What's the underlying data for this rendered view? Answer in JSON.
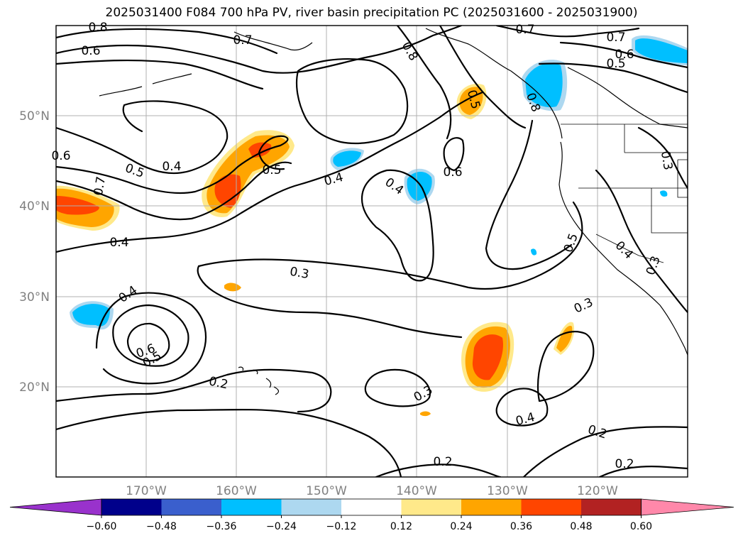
{
  "title": "2025031400 F084 700 hPa PV, river basin precipitation PC (2025031600 - 2025031900)",
  "map": {
    "extent": {
      "lon": [
        -180,
        -110
      ],
      "lat": [
        10,
        60
      ]
    },
    "grid": true,
    "lat_labels": [
      "50°N",
      "40°N",
      "30°N",
      "20°N"
    ],
    "lon_labels": [
      "170°W",
      "160°W",
      "150°W",
      "140°W",
      "130°W",
      "120°W"
    ],
    "contour_labels": [
      "0.8",
      "0.7",
      "0.6",
      "0.8",
      "0.5",
      "0.7",
      "0.7",
      "0.6",
      "0.5",
      "0.6",
      "0.5",
      "0.4",
      "0.5",
      "0.4",
      "0.4",
      "0.6",
      "0.7",
      "0.8",
      "0.4",
      "0.5",
      "0.4",
      "0.3",
      "0.4",
      "0.6",
      "0.5",
      "0.2",
      "0.3",
      "0.3",
      "0.4",
      "0.2",
      "0.2",
      "0.2",
      "0.3",
      "0.3"
    ]
  },
  "colorbar": {
    "ticks": [
      "−0.60",
      "−0.48",
      "−0.36",
      "−0.24",
      "−0.12",
      "0.12",
      "0.24",
      "0.36",
      "0.48",
      "0.60"
    ],
    "colors": [
      "#9932cc",
      "#00008b",
      "#3a5fcd",
      "#00bfff",
      "#add8f0",
      "#ffffff",
      "#ffe98a",
      "#ffa500",
      "#ff4500",
      "#b22222",
      "#ff88aa"
    ],
    "extend": "both"
  }
}
